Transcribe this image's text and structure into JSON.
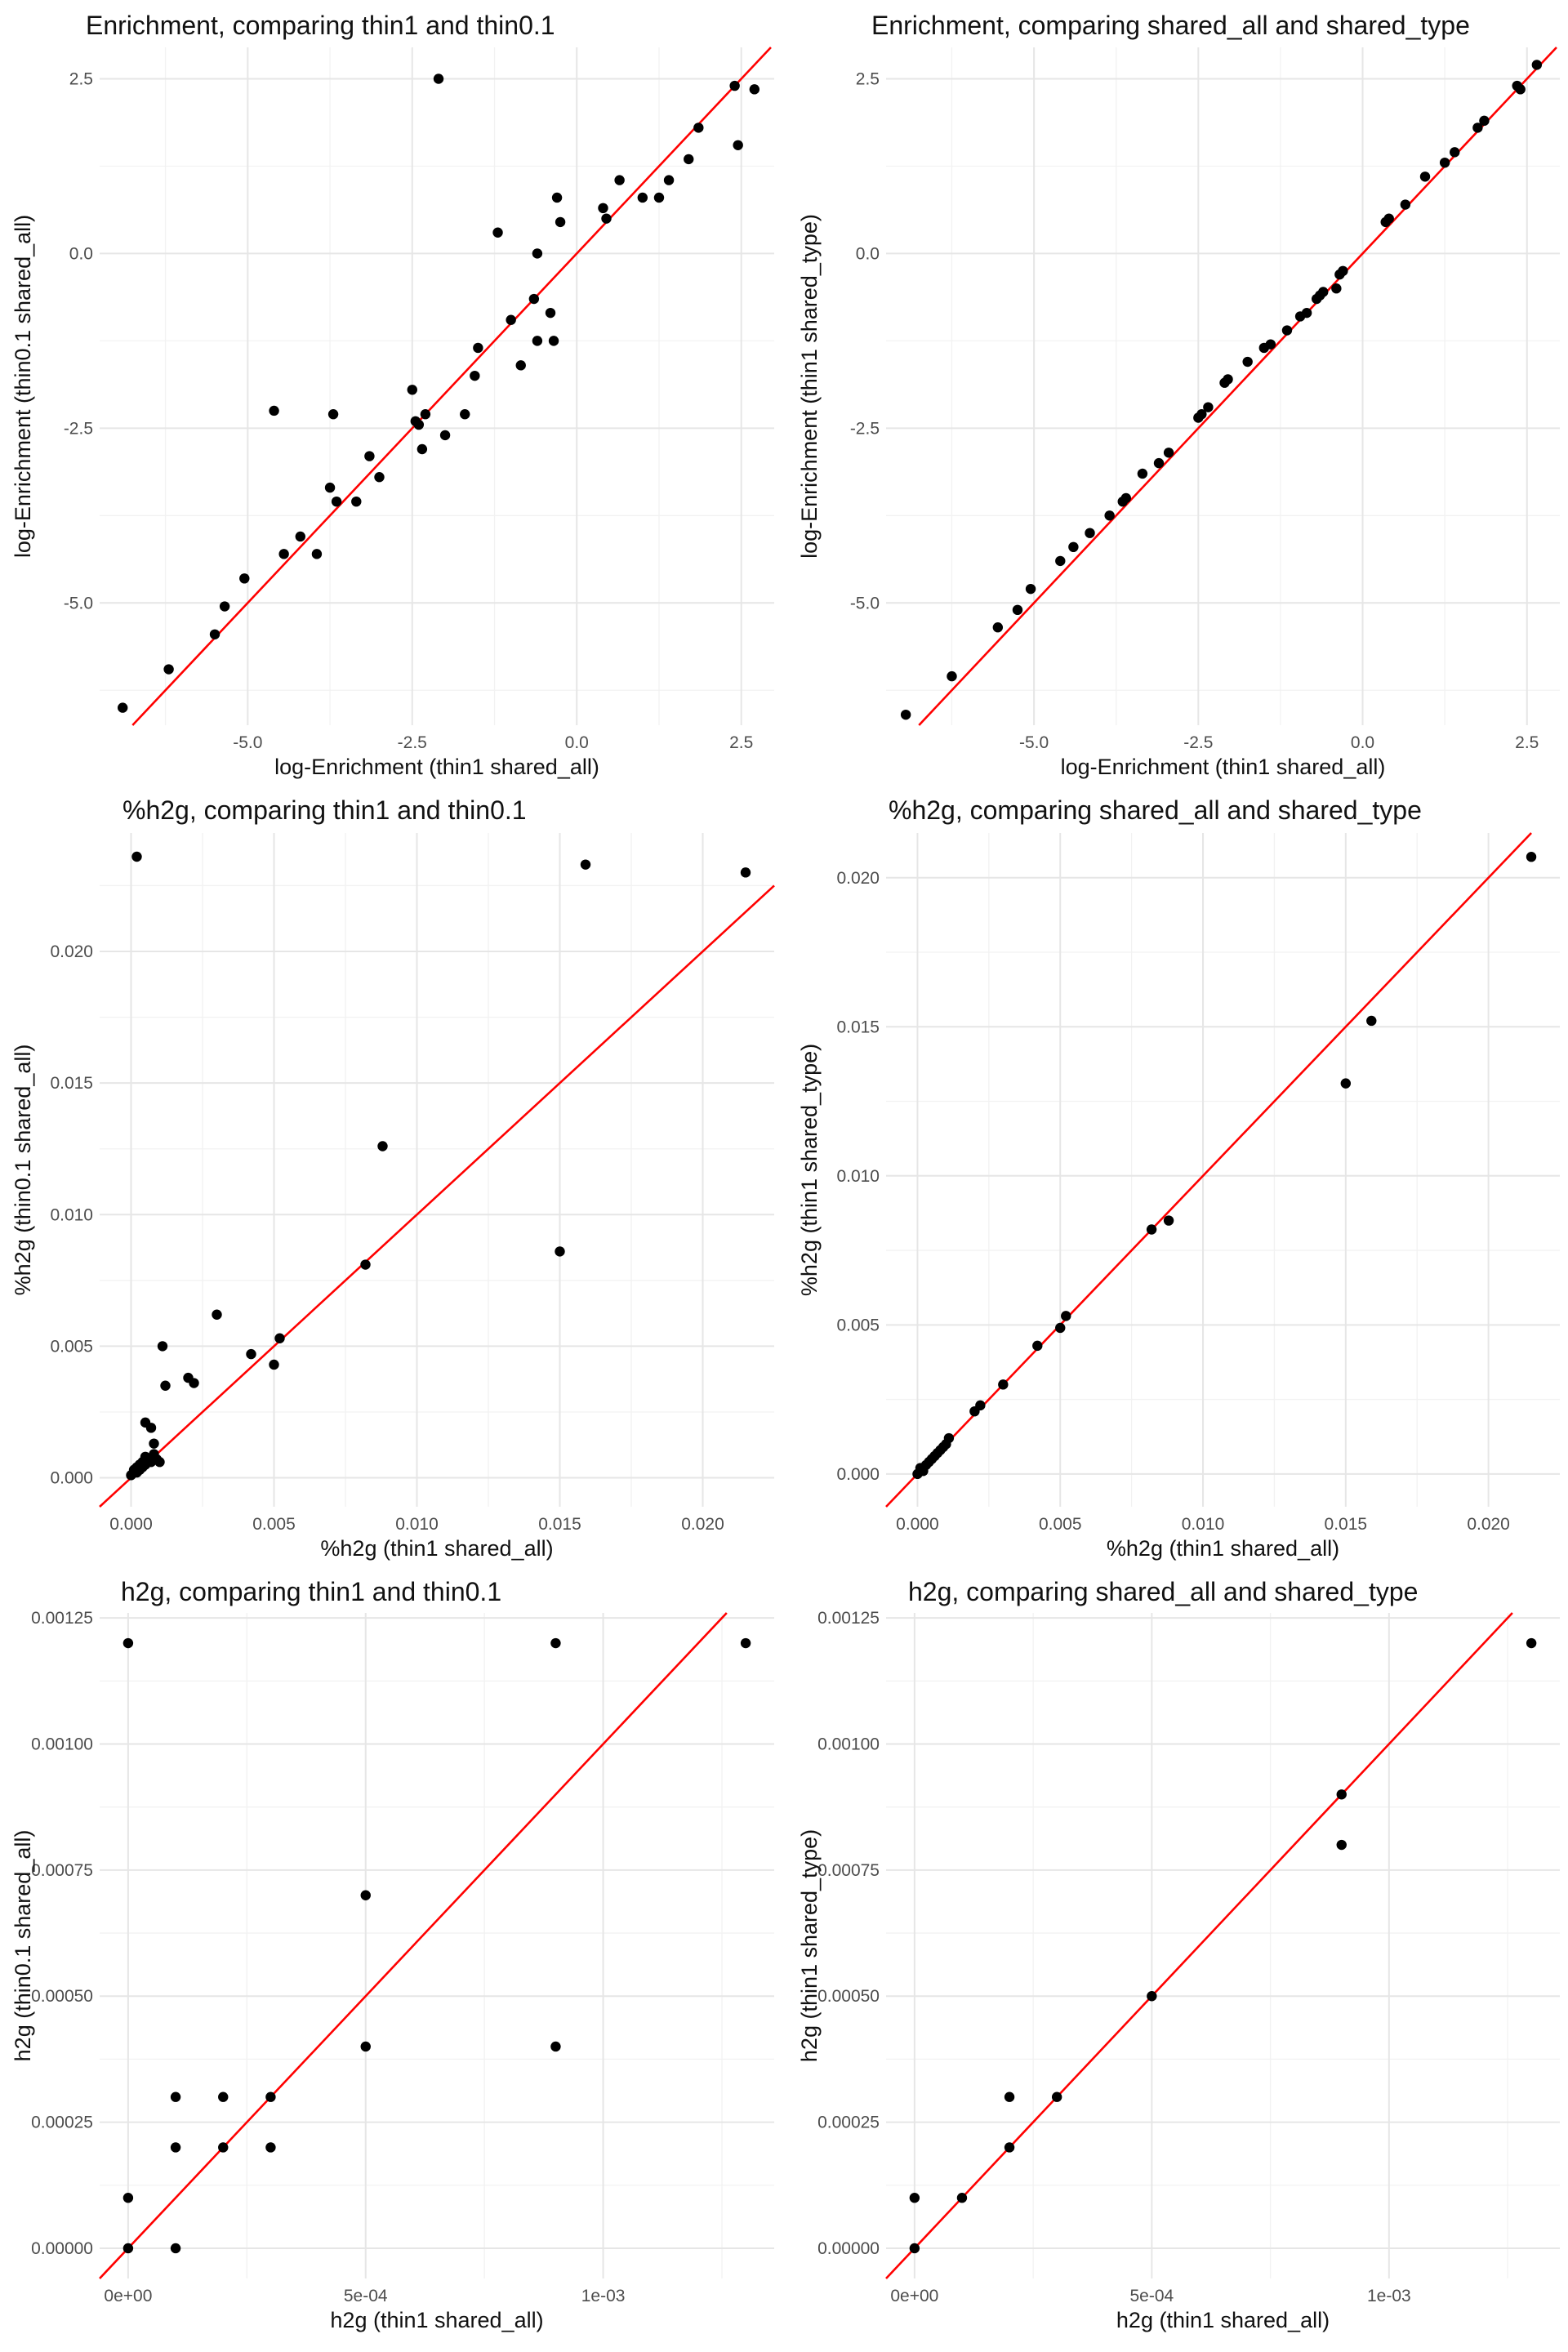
{
  "chart_data": [
    {
      "type": "scatter",
      "title": "Enrichment, comparing thin1 and thin0.1",
      "xlabel": "log-Enrichment (thin1 shared_all)",
      "ylabel": "log-Enrichment (thin0.1 shared_all)",
      "xlim": [
        -7.25,
        3.0
      ],
      "ylim": [
        -6.75,
        2.95
      ],
      "xticks": [
        -5.0,
        -2.5,
        0.0,
        2.5
      ],
      "xtick_labels": [
        "-5.0",
        "-2.5",
        "0.0",
        "2.5"
      ],
      "yticks": [
        -5.0,
        -2.5,
        0.0,
        2.5
      ],
      "ytick_labels": [
        "-5.0",
        "-2.5",
        "0.0",
        "2.5"
      ],
      "reference_line": "y = x",
      "grid": true,
      "x": [
        -6.9,
        -6.2,
        -5.5,
        -5.35,
        -5.05,
        -4.6,
        -4.45,
        -4.2,
        -3.95,
        -3.75,
        -3.7,
        -3.65,
        -3.35,
        -3.15,
        -3.0,
        -2.5,
        -2.45,
        -2.4,
        -2.35,
        -2.3,
        -2.1,
        -2.0,
        -1.7,
        -1.55,
        -1.5,
        -1.2,
        -1.0,
        -0.85,
        -0.65,
        -0.6,
        -0.6,
        -0.4,
        -0.35,
        -0.3,
        -0.25,
        0.4,
        0.45,
        0.65,
        1.0,
        1.25,
        1.4,
        1.7,
        1.85,
        2.4,
        2.45,
        2.7
      ],
      "y": [
        -6.5,
        -5.95,
        -5.45,
        -5.05,
        -4.65,
        -2.25,
        -4.3,
        -4.05,
        -4.3,
        -3.35,
        -2.3,
        -3.55,
        -3.55,
        -2.9,
        -3.2,
        -1.95,
        -2.4,
        -2.45,
        -2.8,
        -2.3,
        2.5,
        -2.6,
        -2.3,
        -1.75,
        -1.35,
        0.3,
        -0.95,
        -1.6,
        -0.65,
        0.0,
        -1.25,
        -0.85,
        -1.25,
        0.8,
        0.45,
        0.65,
        0.5,
        1.05,
        0.8,
        0.8,
        1.05,
        1.35,
        1.8,
        2.4,
        1.55,
        2.35
      ]
    },
    {
      "type": "scatter",
      "title": "Enrichment, comparing shared_all and shared_type",
      "xlabel": "log-Enrichment (thin1 shared_all)",
      "ylabel": "log-Enrichment (thin1 shared_type)",
      "xlim": [
        -7.25,
        3.0
      ],
      "ylim": [
        -6.75,
        2.95
      ],
      "xticks": [
        -5.0,
        -2.5,
        0.0,
        2.5
      ],
      "xtick_labels": [
        "-5.0",
        "-2.5",
        "0.0",
        "2.5"
      ],
      "yticks": [
        -5.0,
        -2.5,
        0.0,
        2.5
      ],
      "ytick_labels": [
        "-5.0",
        "-2.5",
        "0.0",
        "2.5"
      ],
      "reference_line": "y = x",
      "grid": true,
      "x": [
        -6.95,
        -6.25,
        -5.55,
        -5.25,
        -5.05,
        -4.6,
        -4.4,
        -4.15,
        -3.85,
        -3.65,
        -3.6,
        -3.35,
        -3.1,
        -2.95,
        -2.5,
        -2.45,
        -2.35,
        -2.1,
        -2.05,
        -1.75,
        -1.5,
        -1.4,
        -1.15,
        -0.95,
        -0.85,
        -0.7,
        -0.65,
        -0.6,
        -0.4,
        -0.35,
        -0.3,
        0.35,
        0.4,
        0.65,
        0.95,
        1.25,
        1.4,
        1.75,
        1.85,
        2.35,
        2.4,
        2.65
      ],
      "y": [
        -6.6,
        -6.05,
        -5.35,
        -5.1,
        -4.8,
        -4.4,
        -4.2,
        -4.0,
        -3.75,
        -3.55,
        -3.5,
        -3.15,
        -3.0,
        -2.85,
        -2.35,
        -2.3,
        -2.2,
        -1.85,
        -1.8,
        -1.55,
        -1.35,
        -1.3,
        -1.1,
        -0.9,
        -0.85,
        -0.65,
        -0.6,
        -0.55,
        -0.5,
        -0.3,
        -0.25,
        0.45,
        0.5,
        0.7,
        1.1,
        1.3,
        1.45,
        1.8,
        1.9,
        2.4,
        2.35,
        2.7
      ]
    },
    {
      "type": "scatter",
      "title": "%h2g, comparing thin1 and thin0.1",
      "xlabel": "%h2g (thin1 shared_all)",
      "ylabel": "%h2g (thin0.1 shared_all)",
      "xlim": [
        -0.0011,
        0.0225
      ],
      "ylim": [
        -0.0011,
        0.0245
      ],
      "xticks": [
        0.0,
        0.005,
        0.01,
        0.015,
        0.02
      ],
      "xtick_labels": [
        "0.000",
        "0.005",
        "0.010",
        "0.015",
        "0.020"
      ],
      "yticks": [
        0.0,
        0.005,
        0.01,
        0.015,
        0.02
      ],
      "ytick_labels": [
        "0.000",
        "0.005",
        "0.010",
        "0.015",
        "0.020"
      ],
      "reference_line": "y = x",
      "grid": true,
      "x": [
        0.0,
        0.0001,
        0.0001,
        0.0002,
        0.0002,
        0.0003,
        0.0003,
        0.0004,
        0.0004,
        0.0005,
        0.0005,
        0.0006,
        0.0007,
        0.0008,
        0.0009,
        0.001,
        0.0005,
        0.0007,
        0.0008,
        0.0011,
        0.0012,
        0.002,
        0.0022,
        0.003,
        0.0042,
        0.005,
        0.0052,
        0.0082,
        0.0088,
        0.015,
        0.0002,
        0.0159,
        0.0215
      ],
      "y": [
        0.0001,
        0.0002,
        0.0003,
        0.0002,
        0.0004,
        0.0003,
        0.0005,
        0.0004,
        0.0006,
        0.0005,
        0.0008,
        0.0007,
        0.0006,
        0.0009,
        0.0007,
        0.0006,
        0.0021,
        0.0019,
        0.0013,
        0.005,
        0.0035,
        0.0038,
        0.0036,
        0.0062,
        0.0047,
        0.0043,
        0.0053,
        0.0081,
        0.0126,
        0.0086,
        0.0236,
        0.0233,
        0.023
      ]
    },
    {
      "type": "scatter",
      "title": "%h2g, comparing shared_all and shared_type",
      "xlabel": "%h2g (thin1 shared_all)",
      "ylabel": "%h2g (thin1 shared_type)",
      "xlim": [
        -0.0011,
        0.0225
      ],
      "ylim": [
        -0.0011,
        0.0215
      ],
      "xticks": [
        0.0,
        0.005,
        0.01,
        0.015,
        0.02
      ],
      "xtick_labels": [
        "0.000",
        "0.005",
        "0.010",
        "0.015",
        "0.020"
      ],
      "yticks": [
        0.0,
        0.005,
        0.01,
        0.015,
        0.02
      ],
      "ytick_labels": [
        "0.000",
        "0.005",
        "0.010",
        "0.015",
        "0.020"
      ],
      "reference_line": "y = x",
      "grid": true,
      "x": [
        0.0,
        0.0001,
        0.0001,
        0.0002,
        0.0002,
        0.0003,
        0.0004,
        0.0005,
        0.0006,
        0.0007,
        0.0008,
        0.0009,
        0.001,
        0.0011,
        0.002,
        0.0022,
        0.003,
        0.0042,
        0.005,
        0.0052,
        0.0082,
        0.0088,
        0.015,
        0.0159,
        0.0215
      ],
      "y": [
        0.0,
        0.0001,
        0.0002,
        0.0001,
        0.0002,
        0.0003,
        0.0004,
        0.0005,
        0.0006,
        0.0007,
        0.0008,
        0.0009,
        0.001,
        0.0012,
        0.0021,
        0.0023,
        0.003,
        0.0043,
        0.0049,
        0.0053,
        0.0082,
        0.0085,
        0.0131,
        0.0152,
        0.0207
      ]
    },
    {
      "type": "scatter",
      "title": "h2g, comparing thin1 and thin0.1",
      "xlabel": "h2g (thin1 shared_all)",
      "ylabel": "h2g (thin0.1 shared_all)",
      "xlim": [
        -6e-05,
        0.00136
      ],
      "ylim": [
        -6e-05,
        0.00126
      ],
      "xticks": [
        0.0,
        0.0005,
        0.001
      ],
      "xtick_labels": [
        "0e+00",
        "5e-04",
        "1e-03"
      ],
      "yticks": [
        0.0,
        0.00025,
        0.0005,
        0.00075,
        0.001,
        0.00125
      ],
      "ytick_labels": [
        "0.00000",
        "0.00025",
        "0.00050",
        "0.00075",
        "0.00100",
        "0.00125"
      ],
      "reference_line": "y = x",
      "grid": true,
      "x": [
        0.0,
        0.0,
        0.0,
        0.0001,
        0.0001,
        0.0001,
        0.0002,
        0.0002,
        0.0003,
        0.0003,
        0.0005,
        0.0005,
        0.0009,
        0.0009,
        0.0013
      ],
      "y": [
        0.0012,
        0.0001,
        0.0,
        0.0003,
        0.0002,
        0.0,
        0.0003,
        0.0002,
        0.0003,
        0.0002,
        0.0007,
        0.0004,
        0.0012,
        0.0004,
        0.0012
      ]
    },
    {
      "type": "scatter",
      "title": "h2g, comparing shared_all and shared_type",
      "xlabel": "h2g (thin1 shared_all)",
      "ylabel": "h2g (thin1 shared_type)",
      "xlim": [
        -6e-05,
        0.00136
      ],
      "ylim": [
        -6e-05,
        0.00126
      ],
      "xticks": [
        0.0,
        0.0005,
        0.001
      ],
      "xtick_labels": [
        "0e+00",
        "5e-04",
        "1e-03"
      ],
      "yticks": [
        0.0,
        0.00025,
        0.0005,
        0.00075,
        0.001,
        0.00125
      ],
      "ytick_labels": [
        "0.00000",
        "0.00025",
        "0.00050",
        "0.00075",
        "0.00100",
        "0.00125"
      ],
      "reference_line": "y = x",
      "grid": true,
      "x": [
        0.0,
        0.0,
        0.0001,
        0.0002,
        0.0002,
        0.0003,
        0.0005,
        0.0009,
        0.0009,
        0.0013
      ],
      "y": [
        0.0,
        0.0001,
        0.0001,
        0.0002,
        0.0003,
        0.0003,
        0.0005,
        0.0009,
        0.0008,
        0.0012
      ]
    }
  ]
}
